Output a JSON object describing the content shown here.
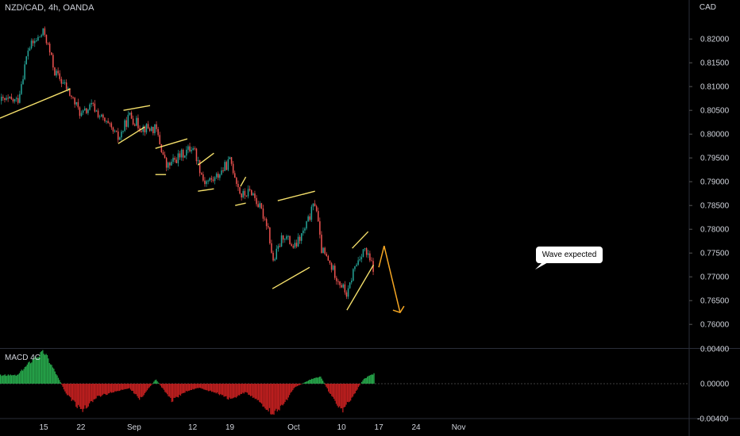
{
  "header": {
    "symbol_title": "NZD/CAD, 4h, OANDA",
    "currency": "CAD"
  },
  "indicator": {
    "label": "MACD 4C"
  },
  "annotation": {
    "callout_text": "Wave expected"
  },
  "colors": {
    "up": "#26a69a",
    "down": "#ef5350",
    "wick": "#9e9e9e",
    "pattern_line": "#f5e06b",
    "forecast": "#f5a623",
    "macd_pos": "#26a54a",
    "macd_neg": "#c01f1f",
    "axis_text": "#d1d4dc"
  },
  "chart_data": [
    {
      "type": "candlestick",
      "title": "NZD/CAD, 4h, OANDA",
      "ylabel": "CAD",
      "ylim": [
        0.7562,
        0.8252
      ],
      "y_ticks": [
        "0.82000",
        "0.81500",
        "0.81000",
        "0.80500",
        "0.80000",
        "0.79500",
        "0.79000",
        "0.78500",
        "0.78000",
        "0.77500",
        "0.77000",
        "0.76500",
        "0.76000"
      ],
      "x_ticks": [
        "15",
        "22",
        "Sep",
        "12",
        "19",
        "Oct",
        "10",
        "17",
        "24",
        "Nov"
      ],
      "path": [
        {
          "date": "08-10",
          "close": 0.807
        },
        {
          "date": "08-12",
          "close": 0.818
        },
        {
          "date": "08-15",
          "close": 0.8215
        },
        {
          "date": "08-17",
          "close": 0.813
        },
        {
          "date": "08-19",
          "close": 0.81
        },
        {
          "date": "08-22",
          "close": 0.804
        },
        {
          "date": "08-24",
          "close": 0.806
        },
        {
          "date": "08-26",
          "close": 0.803
        },
        {
          "date": "08-29",
          "close": 0.799
        },
        {
          "date": "08-31",
          "close": 0.804
        },
        {
          "date": "09-02",
          "close": 0.8015
        },
        {
          "date": "09-05",
          "close": 0.801
        },
        {
          "date": "09-07",
          "close": 0.793
        },
        {
          "date": "09-09",
          "close": 0.795
        },
        {
          "date": "09-12",
          "close": 0.7975
        },
        {
          "date": "09-14",
          "close": 0.79
        },
        {
          "date": "09-16",
          "close": 0.7905
        },
        {
          "date": "09-19",
          "close": 0.7945
        },
        {
          "date": "09-21",
          "close": 0.787
        },
        {
          "date": "09-23",
          "close": 0.788
        },
        {
          "date": "09-26",
          "close": 0.781
        },
        {
          "date": "09-27",
          "close": 0.773
        },
        {
          "date": "09-29",
          "close": 0.779
        },
        {
          "date": "10-01",
          "close": 0.776
        },
        {
          "date": "10-03",
          "close": 0.78
        },
        {
          "date": "10-05",
          "close": 0.786
        },
        {
          "date": "10-06",
          "close": 0.776
        },
        {
          "date": "10-07",
          "close": 0.774
        },
        {
          "date": "10-10",
          "close": 0.768
        },
        {
          "date": "10-11",
          "close": 0.766
        },
        {
          "date": "10-12",
          "close": 0.771
        },
        {
          "date": "10-14",
          "close": 0.776
        },
        {
          "date": "10-16",
          "close": 0.7715
        }
      ],
      "pattern_lines": [
        [
          [
            "08-06",
            0.803
          ],
          [
            "08-20",
            0.8095
          ]
        ],
        [
          [
            "08-30",
            0.805
          ],
          [
            "09-04",
            0.806
          ]
        ],
        [
          [
            "08-29",
            0.798
          ],
          [
            "09-03",
            0.8015
          ]
        ],
        [
          [
            "09-05",
            0.797
          ],
          [
            "09-11",
            0.799
          ]
        ],
        [
          [
            "09-05",
            0.7915
          ],
          [
            "09-07",
            0.7915
          ]
        ],
        [
          [
            "09-13",
            0.7935
          ],
          [
            "09-16",
            0.796
          ]
        ],
        [
          [
            "09-13",
            0.788
          ],
          [
            "09-16",
            0.7885
          ]
        ],
        [
          [
            "09-21",
            0.789
          ],
          [
            "09-22",
            0.791
          ]
        ],
        [
          [
            "09-20",
            0.785
          ],
          [
            "09-22",
            0.7855
          ]
        ],
        [
          [
            "09-28",
            0.786
          ],
          [
            "10-05",
            0.788
          ]
        ],
        [
          [
            "09-27",
            0.7675
          ],
          [
            "10-04",
            0.772
          ]
        ],
        [
          [
            "10-12",
            0.776
          ],
          [
            "10-15",
            0.7795
          ]
        ],
        [
          [
            "10-11",
            0.763
          ],
          [
            "10-16",
            0.7725
          ]
        ]
      ],
      "forecast_path": [
        [
          "10-17",
          0.772
        ],
        [
          "10-18",
          0.7765
        ],
        [
          "10-21",
          0.7625
        ]
      ]
    },
    {
      "type": "histogram",
      "title": "MACD 4C",
      "ylim": [
        -0.0045,
        0.0045
      ],
      "y_ticks": [
        "0.00400",
        "0.00000",
        "-0.00400"
      ],
      "path": [
        {
          "date": "08-10",
          "value": 0.001
        },
        {
          "date": "08-13",
          "value": 0.003
        },
        {
          "date": "08-15",
          "value": 0.0038
        },
        {
          "date": "08-17",
          "value": 0.0015
        },
        {
          "date": "08-19",
          "value": -0.001
        },
        {
          "date": "08-22",
          "value": -0.0032
        },
        {
          "date": "08-25",
          "value": -0.0015
        },
        {
          "date": "08-28",
          "value": -0.001
        },
        {
          "date": "08-31",
          "value": -0.0005
        },
        {
          "date": "09-02",
          "value": -0.0018
        },
        {
          "date": "09-05",
          "value": 0.0005
        },
        {
          "date": "09-08",
          "value": -0.002
        },
        {
          "date": "09-11",
          "value": -0.0008
        },
        {
          "date": "09-13",
          "value": -0.0005
        },
        {
          "date": "09-16",
          "value": -0.001
        },
        {
          "date": "09-19",
          "value": -0.0018
        },
        {
          "date": "09-22",
          "value": -0.001
        },
        {
          "date": "09-24",
          "value": -0.002
        },
        {
          "date": "09-27",
          "value": -0.0035
        },
        {
          "date": "09-29",
          "value": -0.0025
        },
        {
          "date": "10-01",
          "value": -0.0005
        },
        {
          "date": "10-04",
          "value": 0.0005
        },
        {
          "date": "10-06",
          "value": 0.0008
        },
        {
          "date": "10-08",
          "value": -0.0015
        },
        {
          "date": "10-10",
          "value": -0.0032
        },
        {
          "date": "10-12",
          "value": -0.0015
        },
        {
          "date": "10-14",
          "value": 0.0005
        },
        {
          "date": "10-16",
          "value": 0.0012
        }
      ]
    }
  ]
}
